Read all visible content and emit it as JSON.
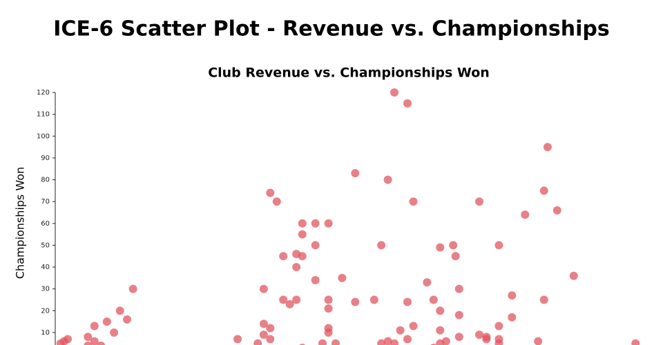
{
  "page_title": "ICE-6 Scatter Plot - Revenue vs. Championships",
  "chart_data": {
    "type": "scatter",
    "title": "Club Revenue vs. Championships Won",
    "y_label": "Championships Won",
    "color": "#e05560",
    "ylim": [
      0,
      120
    ],
    "yticks": [
      10,
      20,
      30,
      40,
      50,
      60,
      70,
      80,
      90,
      100,
      110,
      120
    ],
    "xlim": [
      0,
      100
    ],
    "x": [
      0.9,
      1.5,
      2.1,
      5.5,
      5.5,
      6.6,
      6.6,
      7.7,
      8.7,
      9.9,
      10.9,
      12.1,
      13.1,
      30.7,
      34.1,
      35.1,
      35.1,
      35.1,
      36.2,
      36.2,
      36.2,
      37.3,
      38.4,
      38.4,
      39.5,
      40.6,
      40.6,
      40.6,
      41.6,
      41.6,
      41.6,
      41.6,
      43.8,
      43.8,
      43.8,
      45.0,
      46.0,
      46.0,
      46.0,
      46.0,
      46.0,
      47.2,
      48.3,
      50.5,
      50.5,
      53.7,
      54.9,
      54.9,
      56.0,
      56.0,
      57.1,
      57.1,
      58.1,
      59.3,
      59.3,
      59.3,
      60.3,
      60.3,
      62.6,
      63.7,
      63.7,
      64.8,
      64.8,
      64.8,
      64.8,
      65.8,
      67.0,
      67.4,
      68.0,
      68.0,
      68.0,
      71.4,
      71.4,
      72.6,
      72.6,
      74.7,
      74.7,
      74.7,
      74.7,
      76.9,
      76.9,
      79.1,
      81.3,
      82.3,
      82.3,
      82.9,
      84.5,
      87.3,
      97.7
    ],
    "values": [
      5,
      6,
      7,
      8,
      4,
      13,
      6,
      4,
      15,
      10,
      20,
      16,
      30,
      7,
      5,
      30,
      14,
      9,
      74,
      12,
      7,
      70,
      45,
      25,
      23,
      46,
      40,
      25,
      60,
      55,
      45,
      3,
      60,
      50,
      34,
      5,
      60,
      25,
      21,
      12,
      10,
      5,
      35,
      83,
      24,
      25,
      50,
      5,
      80,
      6,
      120,
      5,
      11,
      115,
      24,
      7,
      70,
      13,
      33,
      25,
      3,
      49,
      20,
      11,
      5,
      6,
      50,
      45,
      30,
      18,
      8,
      70,
      9,
      8,
      7,
      50,
      13,
      7,
      5,
      27,
      17,
      64,
      6,
      75,
      25,
      95,
      66,
      36,
      5
    ]
  }
}
